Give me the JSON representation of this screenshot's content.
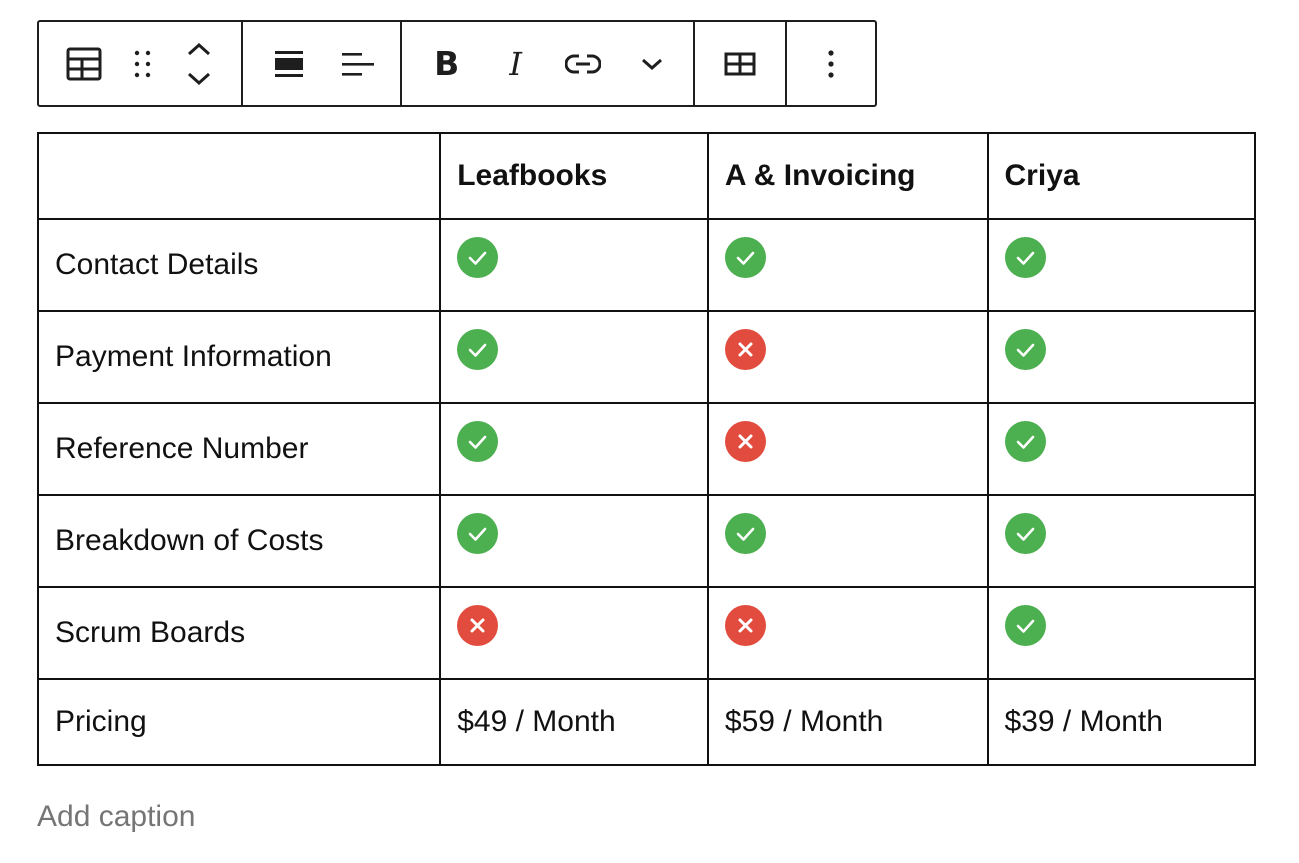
{
  "toolbar": {
    "groups": [
      [
        "table-icon",
        "drag-handle-icon",
        "move-up-down-icon"
      ],
      [
        "align-wide-icon",
        "align-left-icon"
      ],
      [
        "bold-icon",
        "italic-icon",
        "link-icon",
        "chevron-down-icon"
      ],
      [
        "edit-table-icon"
      ],
      [
        "more-options-icon"
      ]
    ],
    "bold_label": "B",
    "italic_label": "I"
  },
  "table": {
    "headers": [
      "",
      "Leafbooks",
      "A & Invoicing",
      "Criya"
    ],
    "rows": [
      {
        "label": "Contact Details",
        "cells": [
          "check",
          "check",
          "check"
        ]
      },
      {
        "label": "Payment Information",
        "cells": [
          "check",
          "cross",
          "check"
        ]
      },
      {
        "label": "Reference Number",
        "cells": [
          "check",
          "cross",
          "check"
        ]
      },
      {
        "label": "Breakdown of Costs",
        "cells": [
          "check",
          "check",
          "check"
        ]
      },
      {
        "label": "Scrum Boards",
        "cells": [
          "cross",
          "cross",
          "check"
        ]
      }
    ],
    "pricing": {
      "label": "Pricing",
      "values": [
        "$49 / Month",
        "$59 / Month",
        "$39 / Month"
      ]
    }
  },
  "caption": {
    "placeholder": "Add caption"
  },
  "colors": {
    "check": "#4caf50",
    "cross": "#e24c3f",
    "border": "#111111",
    "caption": "#757575"
  }
}
